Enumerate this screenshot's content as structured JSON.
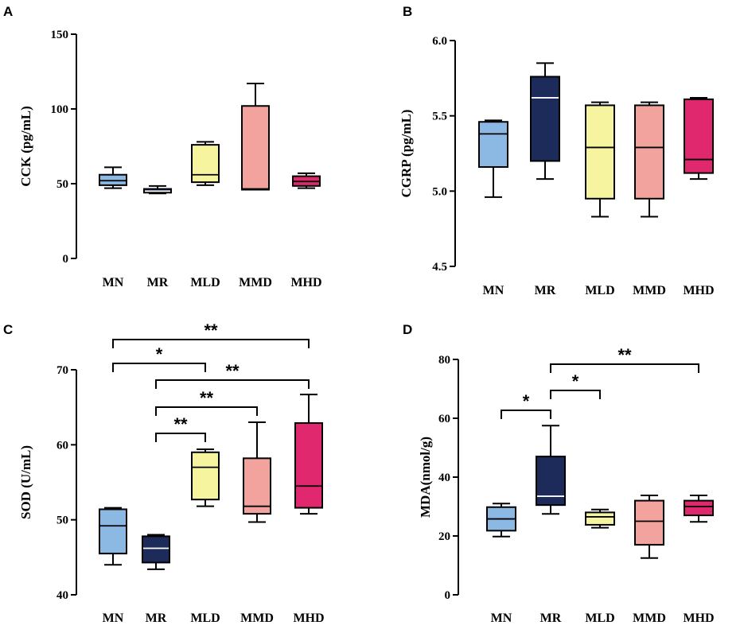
{
  "colors": {
    "MN": "#8cb8e4",
    "MR": "#1c2b5a",
    "MLD": "#f7f4a0",
    "MMD": "#f2a39e",
    "MHD": "#e0286e",
    "median_dark": "#ffffff",
    "median_light": "#000000"
  },
  "chart_data": [
    {
      "panel": "A",
      "type": "box",
      "ylabel": "CCK (pg/mL)",
      "yticks": [
        0,
        50,
        100,
        150
      ],
      "ylim": [
        0,
        150
      ],
      "categories": [
        "MN",
        "MR",
        "MLD",
        "MMD",
        "MHD"
      ],
      "boxes": [
        {
          "min": 47,
          "q1": 49,
          "median": 52,
          "q3": 56,
          "max": 61
        },
        {
          "min": 43.5,
          "q1": 44,
          "median": 45,
          "q3": 46.5,
          "max": 48.5
        },
        {
          "min": 49,
          "q1": 51,
          "median": 56,
          "q3": 76,
          "max": 78
        },
        {
          "min": 46,
          "q1": 46,
          "median": 46.5,
          "q3": 102,
          "max": 117
        },
        {
          "min": 47,
          "q1": 48.5,
          "median": 51.5,
          "q3": 55,
          "max": 57
        }
      ],
      "significance": []
    },
    {
      "panel": "B",
      "type": "box",
      "ylabel": "CGRP (pg/mL)",
      "yticks": [
        "4.5",
        "5.0",
        "5.5",
        "6.0"
      ],
      "ylim": [
        4.5,
        6.0
      ],
      "categories": [
        "MN",
        "MR",
        "MLD",
        "MMD",
        "MHD"
      ],
      "boxes": [
        {
          "min": 4.96,
          "q1": 5.16,
          "median": 5.38,
          "q3": 5.46,
          "max": 5.47
        },
        {
          "min": 5.08,
          "q1": 5.2,
          "median": 5.62,
          "q3": 5.76,
          "max": 5.85
        },
        {
          "min": 4.83,
          "q1": 4.95,
          "median": 5.29,
          "q3": 5.57,
          "max": 5.59
        },
        {
          "min": 4.83,
          "q1": 4.95,
          "median": 5.29,
          "q3": 5.57,
          "max": 5.59
        },
        {
          "min": 5.08,
          "q1": 5.12,
          "median": 5.21,
          "q3": 5.61,
          "max": 5.62
        }
      ],
      "significance": []
    },
    {
      "panel": "C",
      "type": "box",
      "ylabel": "SOD (U/mL)",
      "yticks": [
        40,
        50,
        60,
        70
      ],
      "ylim": [
        40,
        70
      ],
      "categories": [
        "MN",
        "MR",
        "MLD",
        "MMD",
        "MHD"
      ],
      "boxes": [
        {
          "min": 44,
          "q1": 45.5,
          "median": 49.2,
          "q3": 51.4,
          "max": 51.6
        },
        {
          "min": 43.4,
          "q1": 44.3,
          "median": 46.2,
          "q3": 47.8,
          "max": 48
        },
        {
          "min": 51.8,
          "q1": 52.7,
          "median": 57,
          "q3": 59,
          "max": 59.4
        },
        {
          "min": 49.7,
          "q1": 50.8,
          "median": 51.8,
          "q3": 58.2,
          "max": 63
        },
        {
          "min": 50.8,
          "q1": 51.6,
          "median": 54.5,
          "q3": 62.9,
          "max": 66.7
        }
      ],
      "significance": [
        {
          "from": 0,
          "to": 4,
          "label": "**"
        },
        {
          "from": 0,
          "to": 2,
          "label": "*"
        },
        {
          "from": 1,
          "to": 4,
          "label": "**"
        },
        {
          "from": 1,
          "to": 3,
          "label": "**"
        },
        {
          "from": 1,
          "to": 2,
          "label": "**"
        }
      ]
    },
    {
      "panel": "D",
      "type": "box",
      "ylabel": "MDA(nmol/g)",
      "yticks": [
        0,
        20,
        40,
        60,
        80
      ],
      "ylim": [
        0,
        80
      ],
      "categories": [
        "MN",
        "MR",
        "MLD",
        "MMD",
        "MHD"
      ],
      "boxes": [
        {
          "min": 19.8,
          "q1": 21.8,
          "median": 25.8,
          "q3": 29.8,
          "max": 31
        },
        {
          "min": 27.5,
          "q1": 30.5,
          "median": 33.5,
          "q3": 47,
          "max": 57.5
        },
        {
          "min": 22.8,
          "q1": 23.8,
          "median": 26.5,
          "q3": 28,
          "max": 29
        },
        {
          "min": 12.5,
          "q1": 17,
          "median": 25,
          "q3": 32,
          "max": 33.8
        },
        {
          "min": 24.8,
          "q1": 27,
          "median": 30,
          "q3": 32,
          "max": 33.8
        }
      ],
      "significance": [
        {
          "from": 1,
          "to": 4,
          "label": "**"
        },
        {
          "from": 1,
          "to": 2,
          "label": "*"
        },
        {
          "from": 0,
          "to": 1,
          "label": "*"
        }
      ]
    }
  ]
}
